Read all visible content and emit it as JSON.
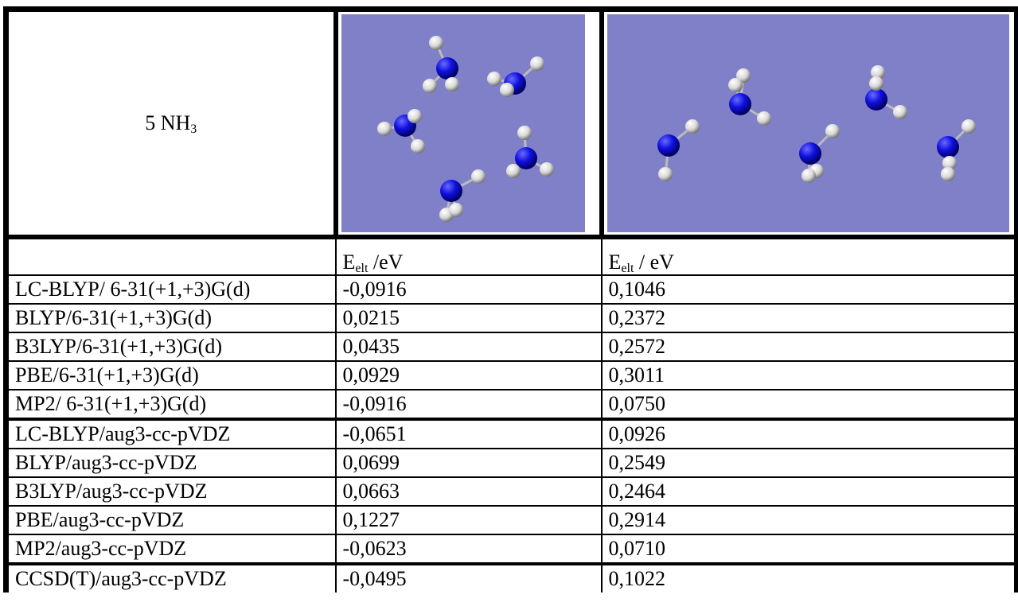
{
  "header": {
    "label": {
      "text": "5 NH",
      "sub": "3"
    }
  },
  "columns": [
    {
      "text": "E",
      "sub": "elt",
      "unit": " /eV"
    },
    {
      "text": "E",
      "sub": "elt",
      "unit": " / eV"
    }
  ],
  "table": {
    "rows": [
      [
        "LC-BLYP/ 6-31(+1,+3)G(d)",
        "-0,0916",
        "0,1046"
      ],
      [
        "BLYP/6-31(+1,+3)G(d)",
        "0,0215",
        "0,2372"
      ],
      [
        "B3LYP/6-31(+1,+3)G(d)",
        "0,0435",
        "0,2572"
      ],
      [
        "PBE/6-31(+1,+3)G(d)",
        "0,0929",
        "0,3011"
      ],
      [
        "MP2/ 6-31(+1,+3)G(d)",
        "-0,0916",
        "0,0750"
      ],
      [
        "LC-BLYP/aug3-cc-pVDZ",
        "-0,0651",
        "0,0926"
      ],
      [
        "BLYP/aug3-cc-pVDZ",
        "0,0699",
        "0,2549"
      ],
      [
        "B3LYP/aug3-cc-pVDZ",
        "0,0663",
        "0,2464"
      ],
      [
        "PBE/aug3-cc-pVDZ",
        "0,1227",
        "0,2914"
      ],
      [
        "MP2/aug3-cc-pVDZ",
        "-0,0623",
        "0,0710"
      ],
      [
        "CCSD(T)/aug3-cc-pVDZ",
        "-0,0495",
        "0,1022"
      ]
    ]
  }
}
